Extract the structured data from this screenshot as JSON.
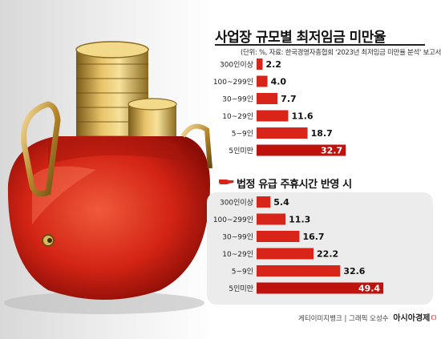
{
  "colors": {
    "bar": "#d9241a",
    "bar_last": "#c0120c",
    "label": "#222222"
  },
  "chart_data": [
    {
      "type": "bar",
      "orientation": "horizontal",
      "title": "사업장 규모별 최저임금 미만율",
      "note": "(단위: %, 자료: 한국경영자총협회 '2023년 최저임금 미만율 분석' 보고서)",
      "categories": [
        "300인이상",
        "100~299인",
        "30~99인",
        "10~29인",
        "5~9인",
        "5인미만"
      ],
      "values": [
        2.2,
        4.0,
        7.7,
        11.6,
        18.7,
        32.7
      ],
      "value_labels": [
        "2.2",
        "4.0",
        "7.7",
        "11.6",
        "18.7",
        "32.7"
      ],
      "xlim": [
        0,
        50
      ],
      "legend": "none",
      "grid": false
    },
    {
      "type": "bar",
      "orientation": "horizontal",
      "title": "법정 유급 주휴시간 반영 시",
      "categories": [
        "300인이상",
        "100~299인",
        "30~99인",
        "10~29인",
        "5~9인",
        "5인미만"
      ],
      "values": [
        5.4,
        11.3,
        16.7,
        22.2,
        32.6,
        49.4
      ],
      "value_labels": [
        "5.4",
        "11.3",
        "16.7",
        "22.2",
        "32.6",
        "49.4"
      ],
      "xlim": [
        0,
        50
      ],
      "legend": "none",
      "grid": false
    }
  ],
  "footer": {
    "credit": "게티이미지뱅크 | 그래픽 오성수",
    "brand": "아시아경제",
    "brand_mark": "ㅁ"
  }
}
